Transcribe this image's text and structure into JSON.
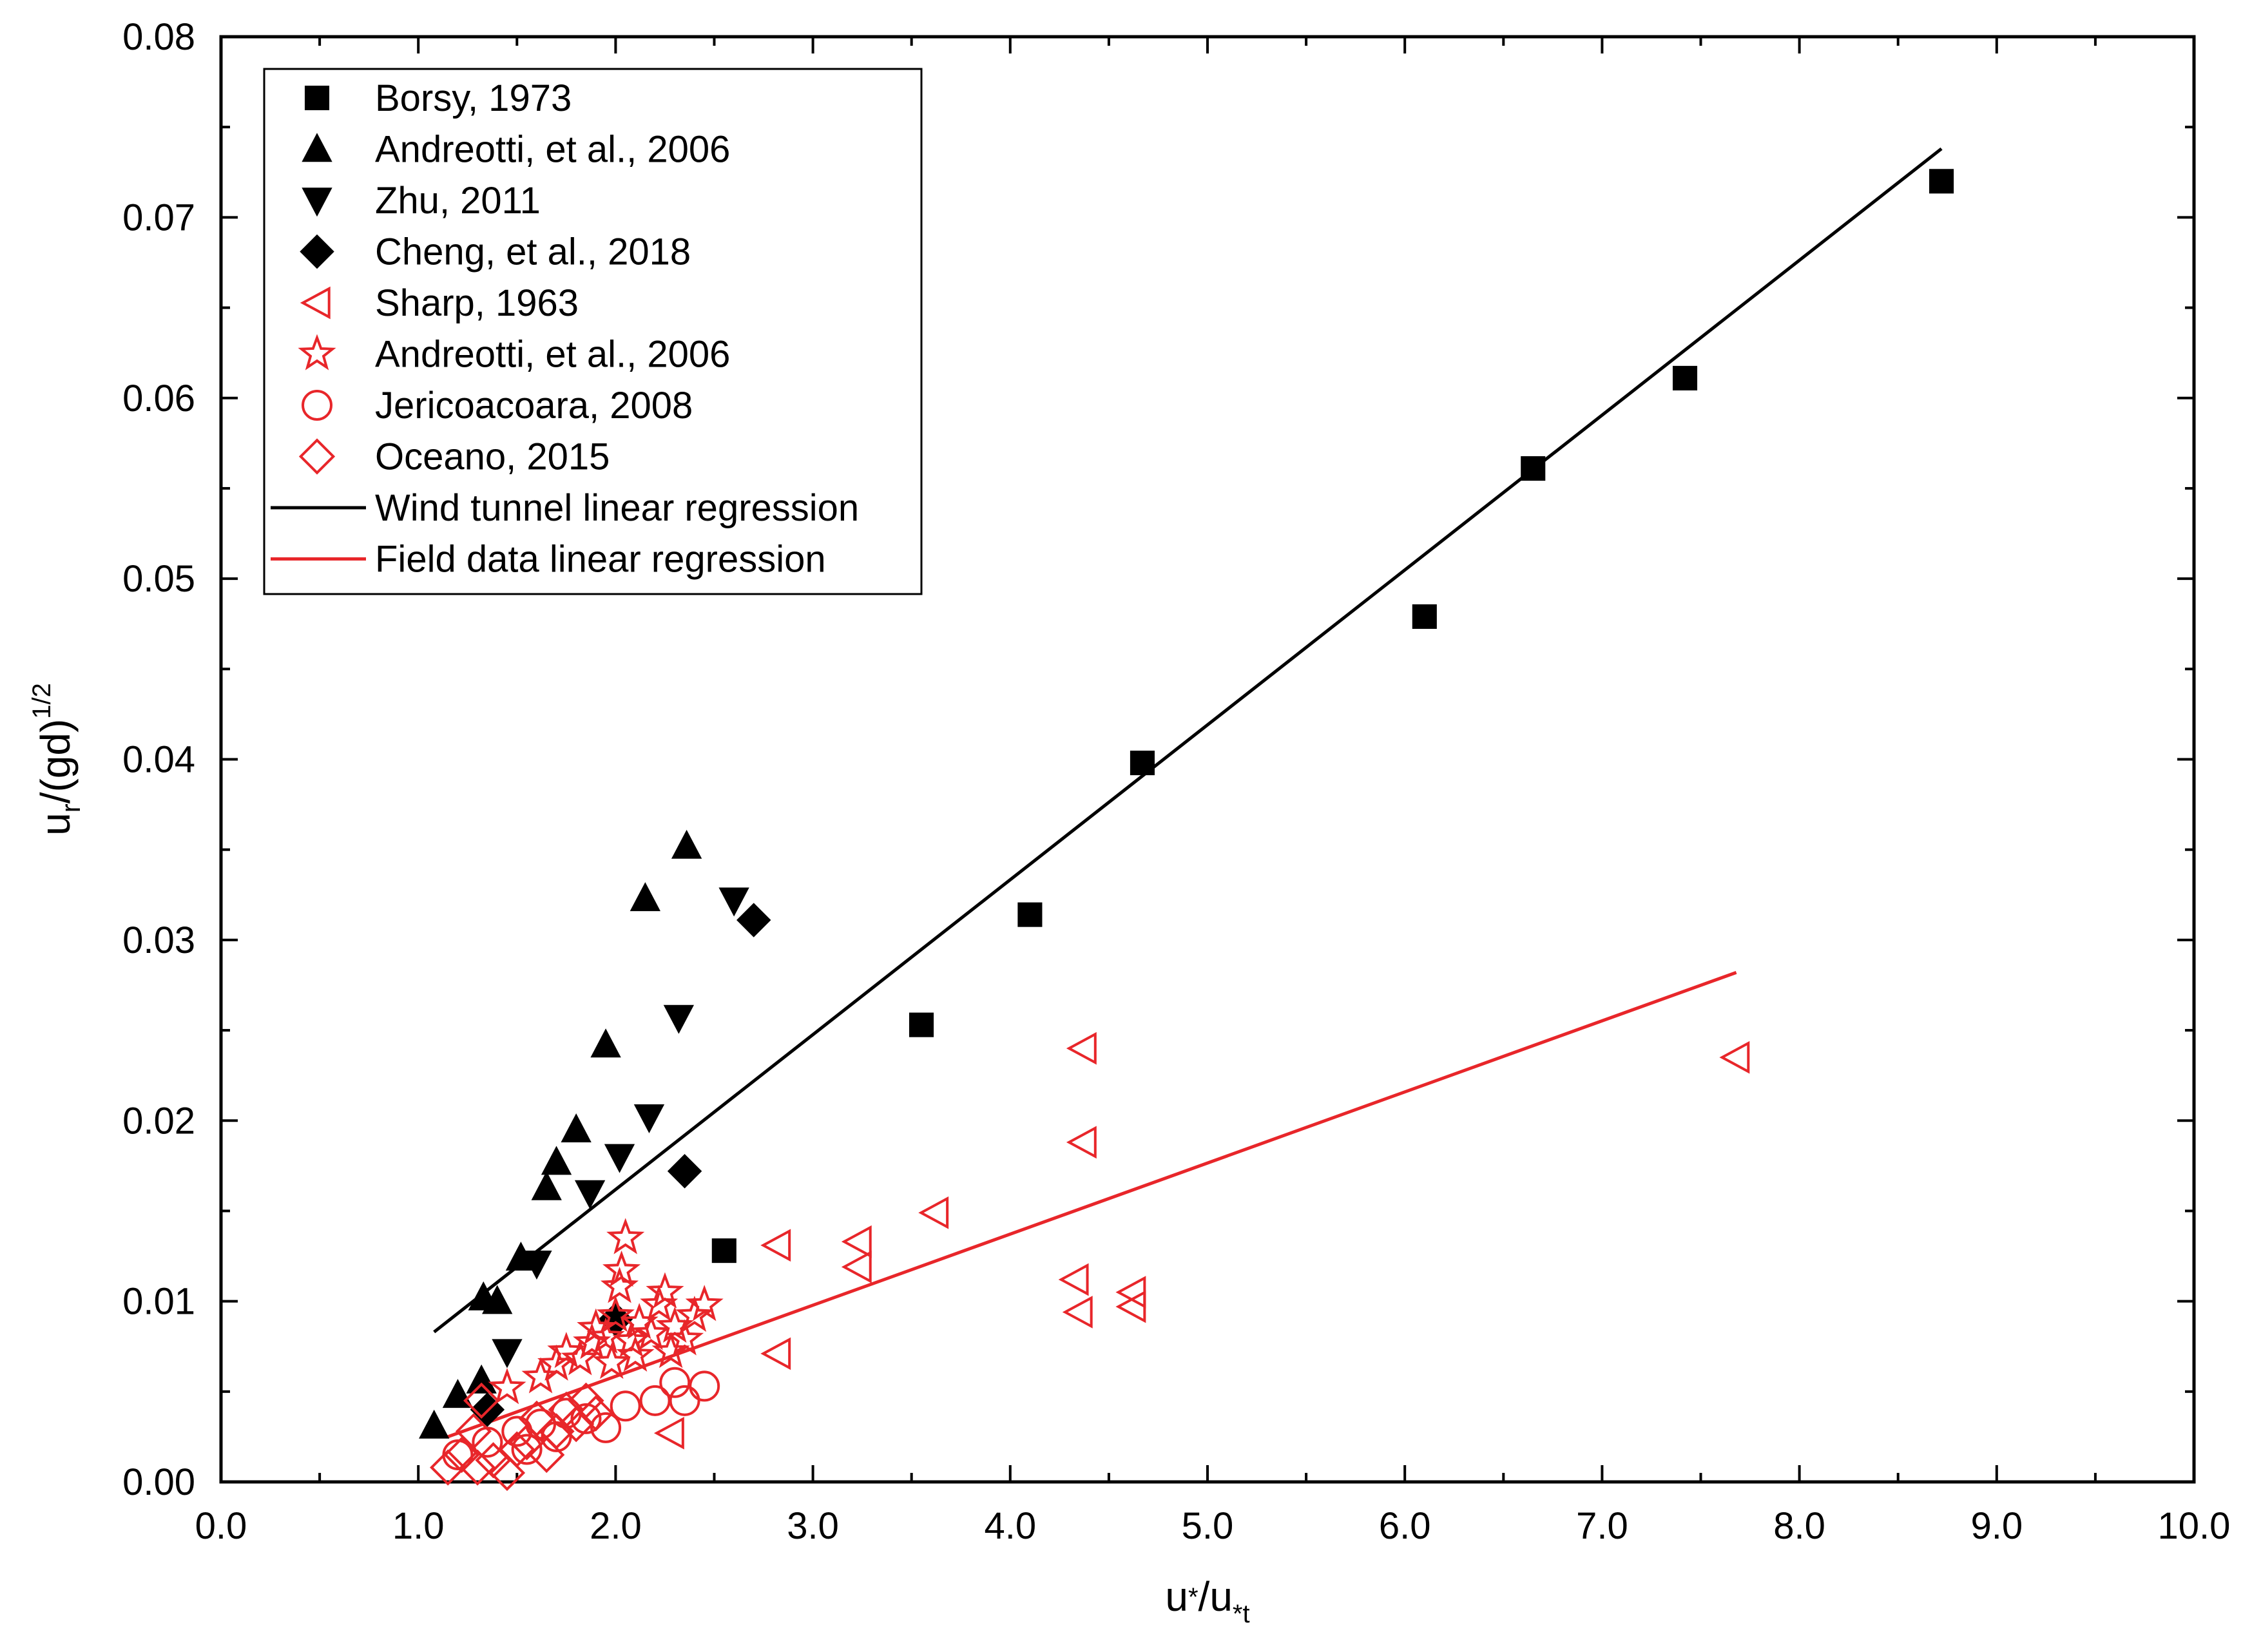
{
  "chart_data": {
    "type": "scatter",
    "xlabel": "u*/u*t",
    "ylabel": "ur/(gd)^1/2",
    "xlabel_parts": {
      "base1": "u",
      "sup1": "*",
      "sep": "/u",
      "sub2": "*t"
    },
    "ylabel_parts": {
      "base": "u",
      "sub": "r",
      "rest": "/(gd)",
      "sup": "1/2"
    },
    "xlim": [
      0.0,
      10.0
    ],
    "ylim": [
      0.0,
      0.08
    ],
    "xticks": [
      "0.0",
      "1.0",
      "2.0",
      "3.0",
      "4.0",
      "5.0",
      "6.0",
      "7.0",
      "8.0",
      "9.0",
      "10.0"
    ],
    "yticks": [
      "0.00",
      "0.01",
      "0.02",
      "0.03",
      "0.04",
      "0.05",
      "0.06",
      "0.07",
      "0.08"
    ],
    "legend_position": "top-left",
    "series": [
      {
        "name": "Borsy, 1973",
        "marker": "square",
        "filled": true,
        "color": "#000000",
        "points": [
          [
            2.55,
            0.0128
          ],
          [
            3.55,
            0.0253
          ],
          [
            4.1,
            0.0314
          ],
          [
            4.67,
            0.0398
          ],
          [
            6.1,
            0.0479
          ],
          [
            6.65,
            0.0561
          ],
          [
            7.42,
            0.0611
          ],
          [
            8.72,
            0.072
          ]
        ]
      },
      {
        "name": "Andreotti, et al., 2006",
        "marker": "triangle-up",
        "filled": true,
        "color": "#000000",
        "points": [
          [
            1.08,
            0.0031
          ],
          [
            1.2,
            0.0048
          ],
          [
            1.32,
            0.0056
          ],
          [
            1.33,
            0.0102
          ],
          [
            1.4,
            0.01
          ],
          [
            1.52,
            0.0124
          ],
          [
            1.65,
            0.0163
          ],
          [
            1.7,
            0.0177
          ],
          [
            1.8,
            0.0195
          ],
          [
            1.95,
            0.0242
          ],
          [
            2.15,
            0.0323
          ],
          [
            2.36,
            0.0352
          ]
        ]
      },
      {
        "name": "Zhu, 2011",
        "marker": "triangle-down",
        "filled": true,
        "color": "#000000",
        "points": [
          [
            1.45,
            0.0072
          ],
          [
            1.6,
            0.0121
          ],
          [
            1.87,
            0.016
          ],
          [
            2.02,
            0.018
          ],
          [
            2.17,
            0.0202
          ],
          [
            2.32,
            0.0257
          ],
          [
            2.6,
            0.0322
          ]
        ]
      },
      {
        "name": "Cheng, et al., 2018",
        "marker": "diamond",
        "filled": true,
        "color": "#000000",
        "points": [
          [
            1.35,
            0.004
          ],
          [
            2.0,
            0.009
          ],
          [
            2.35,
            0.0172
          ],
          [
            2.7,
            0.0311
          ]
        ]
      },
      {
        "name": "Sharp, 1963",
        "marker": "triangle-left",
        "filled": false,
        "color": "#e8262a",
        "points": [
          [
            2.28,
            0.0027
          ],
          [
            2.82,
            0.0071
          ],
          [
            2.82,
            0.0131
          ],
          [
            3.23,
            0.0133
          ],
          [
            3.23,
            0.0119
          ],
          [
            3.62,
            0.0149
          ],
          [
            4.33,
            0.0112
          ],
          [
            4.35,
            0.0094
          ],
          [
            4.37,
            0.0188
          ],
          [
            4.37,
            0.024
          ],
          [
            4.62,
            0.0105
          ],
          [
            4.62,
            0.0097
          ],
          [
            7.68,
            0.0235
          ]
        ]
      },
      {
        "name": "Andreotti, et al., 2006",
        "marker": "star",
        "filled": false,
        "color": "#e8262a",
        "points": [
          [
            1.45,
            0.0052
          ],
          [
            1.62,
            0.0058
          ],
          [
            1.7,
            0.0065
          ],
          [
            1.75,
            0.0072
          ],
          [
            1.82,
            0.0068
          ],
          [
            1.88,
            0.0077
          ],
          [
            1.9,
            0.0085
          ],
          [
            1.95,
            0.008
          ],
          [
            2.0,
            0.0092
          ],
          [
            2.02,
            0.0108
          ],
          [
            2.03,
            0.0117
          ],
          [
            2.05,
            0.0135
          ],
          [
            2.08,
            0.0078
          ],
          [
            2.12,
            0.0088
          ],
          [
            2.18,
            0.0082
          ],
          [
            2.22,
            0.0098
          ],
          [
            2.25,
            0.0105
          ],
          [
            2.3,
            0.0086
          ],
          [
            2.35,
            0.0079
          ],
          [
            2.4,
            0.0092
          ],
          [
            2.45,
            0.0098
          ],
          [
            1.98,
            0.0066
          ],
          [
            2.1,
            0.007
          ],
          [
            2.28,
            0.0072
          ]
        ]
      },
      {
        "name": "Jericoacoara, 2008",
        "marker": "circle",
        "filled": false,
        "color": "#e8262a",
        "points": [
          [
            1.2,
            0.0015
          ],
          [
            1.35,
            0.0022
          ],
          [
            1.5,
            0.0028
          ],
          [
            1.62,
            0.0032
          ],
          [
            1.75,
            0.0038
          ],
          [
            1.85,
            0.0035
          ],
          [
            1.95,
            0.003
          ],
          [
            2.05,
            0.0042
          ],
          [
            2.2,
            0.0045
          ],
          [
            2.3,
            0.0055
          ],
          [
            2.35,
            0.0045
          ],
          [
            2.45,
            0.0053
          ],
          [
            1.7,
            0.0025
          ],
          [
            1.55,
            0.0018
          ]
        ]
      },
      {
        "name": "Oceano, 2015",
        "marker": "diamond",
        "filled": false,
        "color": "#e8262a",
        "points": [
          [
            1.15,
            0.0008
          ],
          [
            1.22,
            0.0015
          ],
          [
            1.28,
            0.0028
          ],
          [
            1.32,
            0.0045
          ],
          [
            1.38,
            0.0012
          ],
          [
            1.45,
            0.0005
          ],
          [
            1.5,
            0.0018
          ],
          [
            1.55,
            0.0022
          ],
          [
            1.6,
            0.0035
          ],
          [
            1.65,
            0.0015
          ],
          [
            1.7,
            0.0028
          ],
          [
            1.75,
            0.004
          ],
          [
            1.8,
            0.0032
          ],
          [
            1.85,
            0.0045
          ],
          [
            1.9,
            0.0038
          ],
          [
            1.3,
            0.0008
          ]
        ]
      }
    ],
    "regressions": [
      {
        "name": "Wind tunnel linear regression",
        "color": "#000000",
        "x": [
          1.08,
          8.72
        ],
        "y": [
          0.0083,
          0.0738
        ]
      },
      {
        "name": "Field data linear regression",
        "color": "#e8262a",
        "x": [
          1.15,
          7.68
        ],
        "y": [
          0.0025,
          0.0282
        ]
      }
    ]
  }
}
